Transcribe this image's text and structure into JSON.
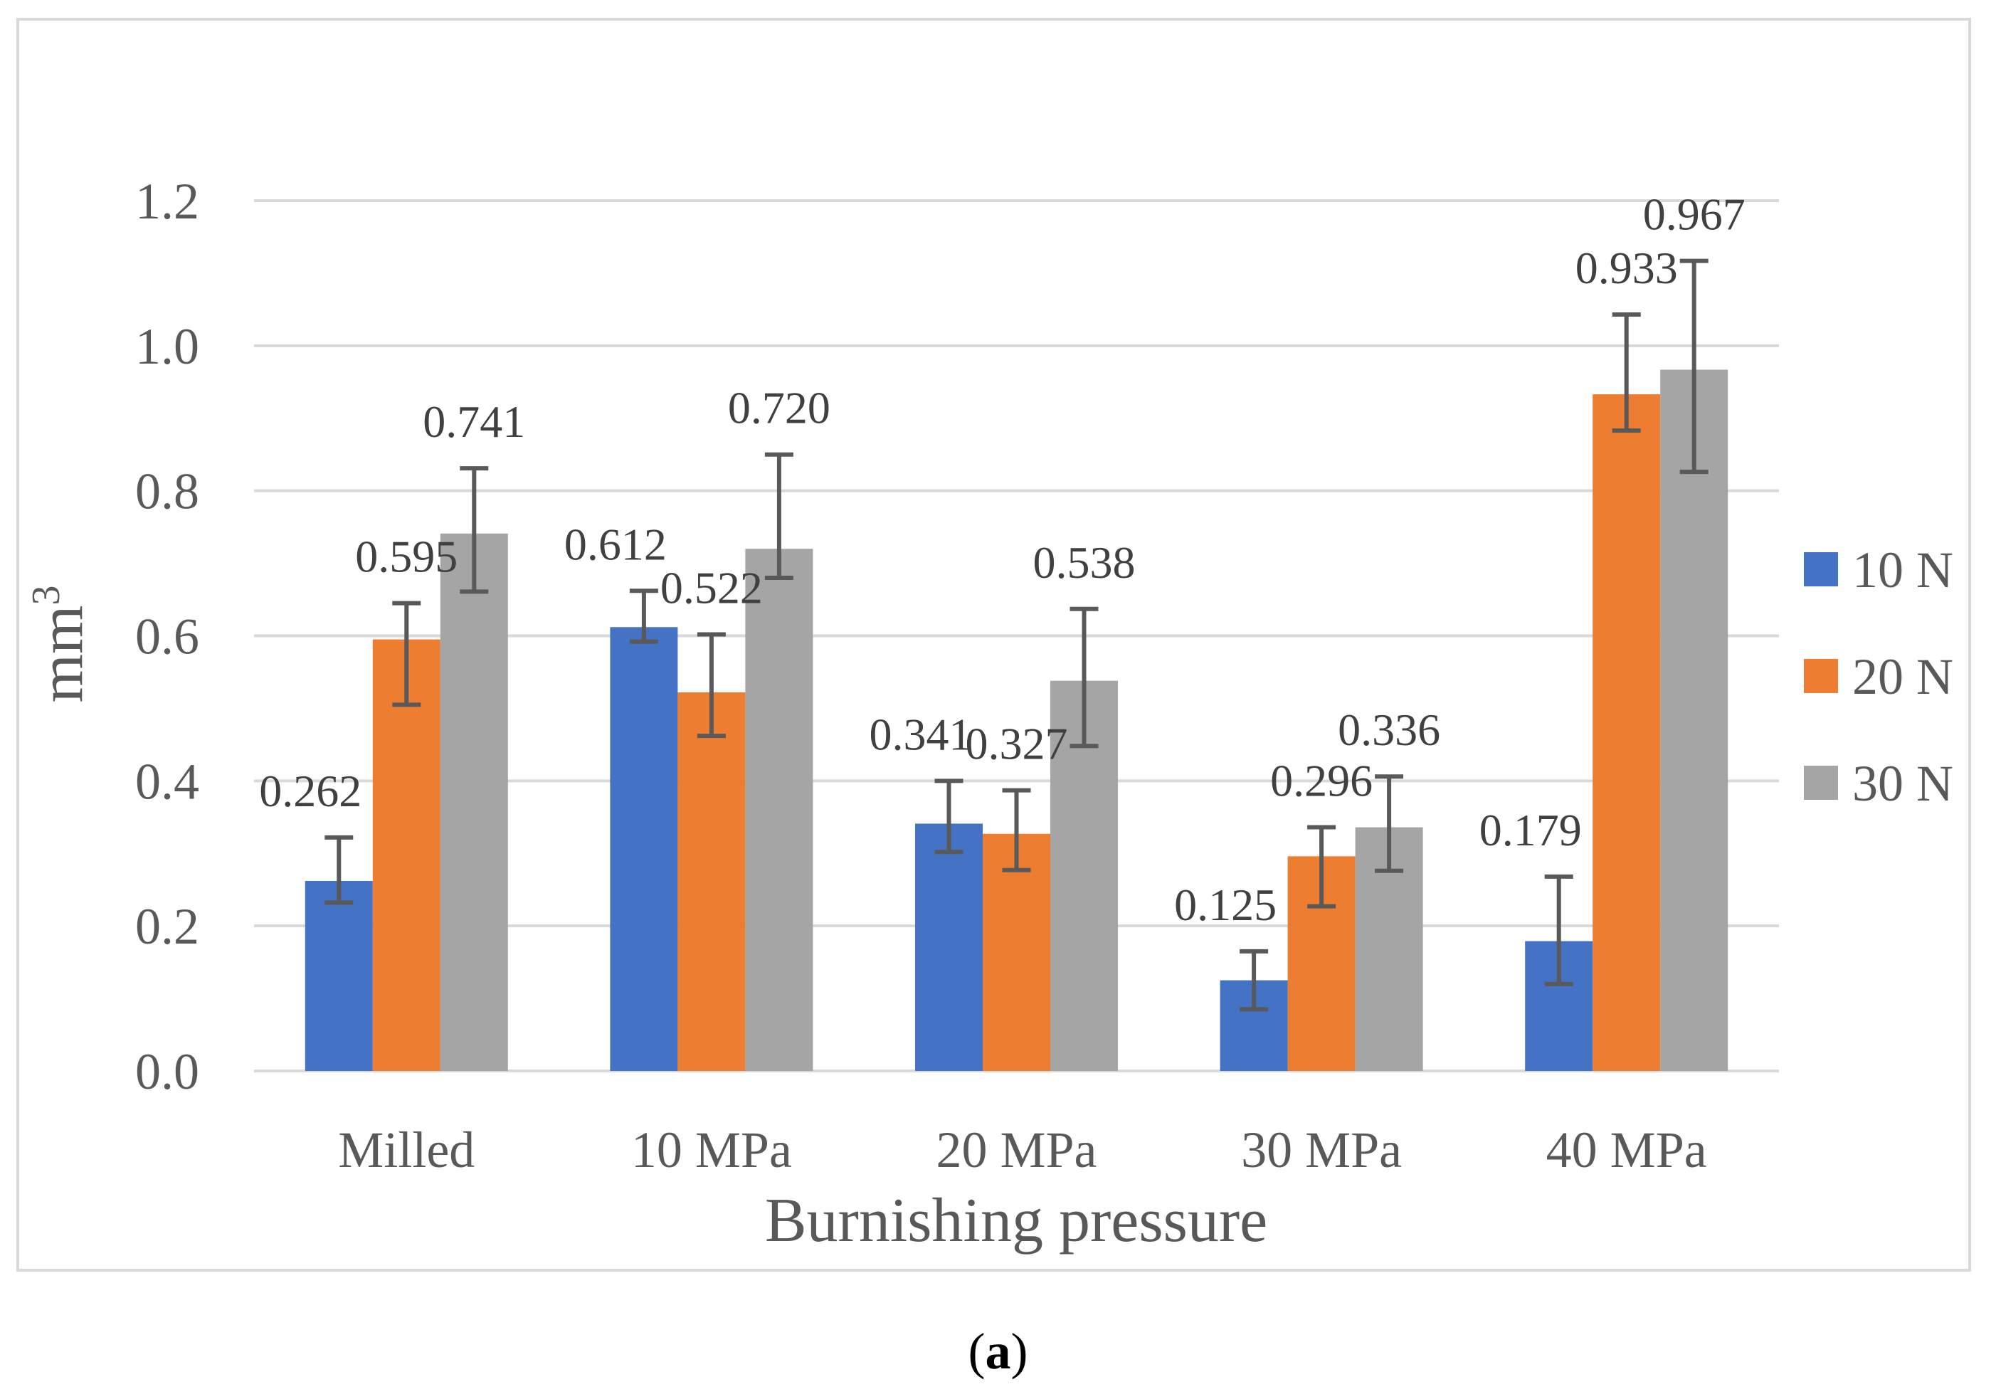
{
  "chart_data": {
    "type": "bar",
    "title": "",
    "xlabel": "Burnishing pressure",
    "ylabel": "mm",
    "ylabel_superscript": "3",
    "categories": [
      "Milled",
      "10 MPa",
      "20 MPa",
      "30 MPa",
      "40 MPa"
    ],
    "ylim": [
      0.0,
      1.2
    ],
    "yticks": [
      "0.0",
      "0.2",
      "0.4",
      "0.6",
      "0.8",
      "1.0",
      "1.2"
    ],
    "grid": true,
    "legend_position": "right",
    "series": [
      {
        "name": "10 N",
        "color": "#4472c4",
        "values": [
          0.262,
          0.612,
          0.341,
          0.125,
          0.179
        ],
        "labels": [
          "0.262",
          "0.612",
          "0.341",
          "0.125",
          "0.179"
        ],
        "error_low": [
          0.232,
          0.592,
          0.302,
          0.085,
          0.12
        ],
        "error_high": [
          0.322,
          0.662,
          0.4,
          0.165,
          0.268
        ]
      },
      {
        "name": "20 N",
        "color": "#ed7d31",
        "values": [
          0.595,
          0.522,
          0.327,
          0.296,
          0.933
        ],
        "labels": [
          "0.595",
          "0.522",
          "0.327",
          "0.296",
          "0.933"
        ],
        "error_low": [
          0.505,
          0.462,
          0.277,
          0.227,
          0.883
        ],
        "error_high": [
          0.645,
          0.602,
          0.387,
          0.336,
          1.043
        ]
      },
      {
        "name": "30 N",
        "color": "#a5a5a5",
        "values": [
          0.741,
          0.72,
          0.538,
          0.336,
          0.967
        ],
        "labels": [
          "0.741",
          "0.720",
          "0.538",
          "0.336",
          "0.967"
        ],
        "error_low": [
          0.661,
          0.68,
          0.448,
          0.276,
          0.826
        ],
        "error_high": [
          0.831,
          0.85,
          0.637,
          0.406,
          1.117
        ]
      }
    ]
  },
  "caption": {
    "open": "(",
    "letter": "a",
    "close": ")"
  }
}
